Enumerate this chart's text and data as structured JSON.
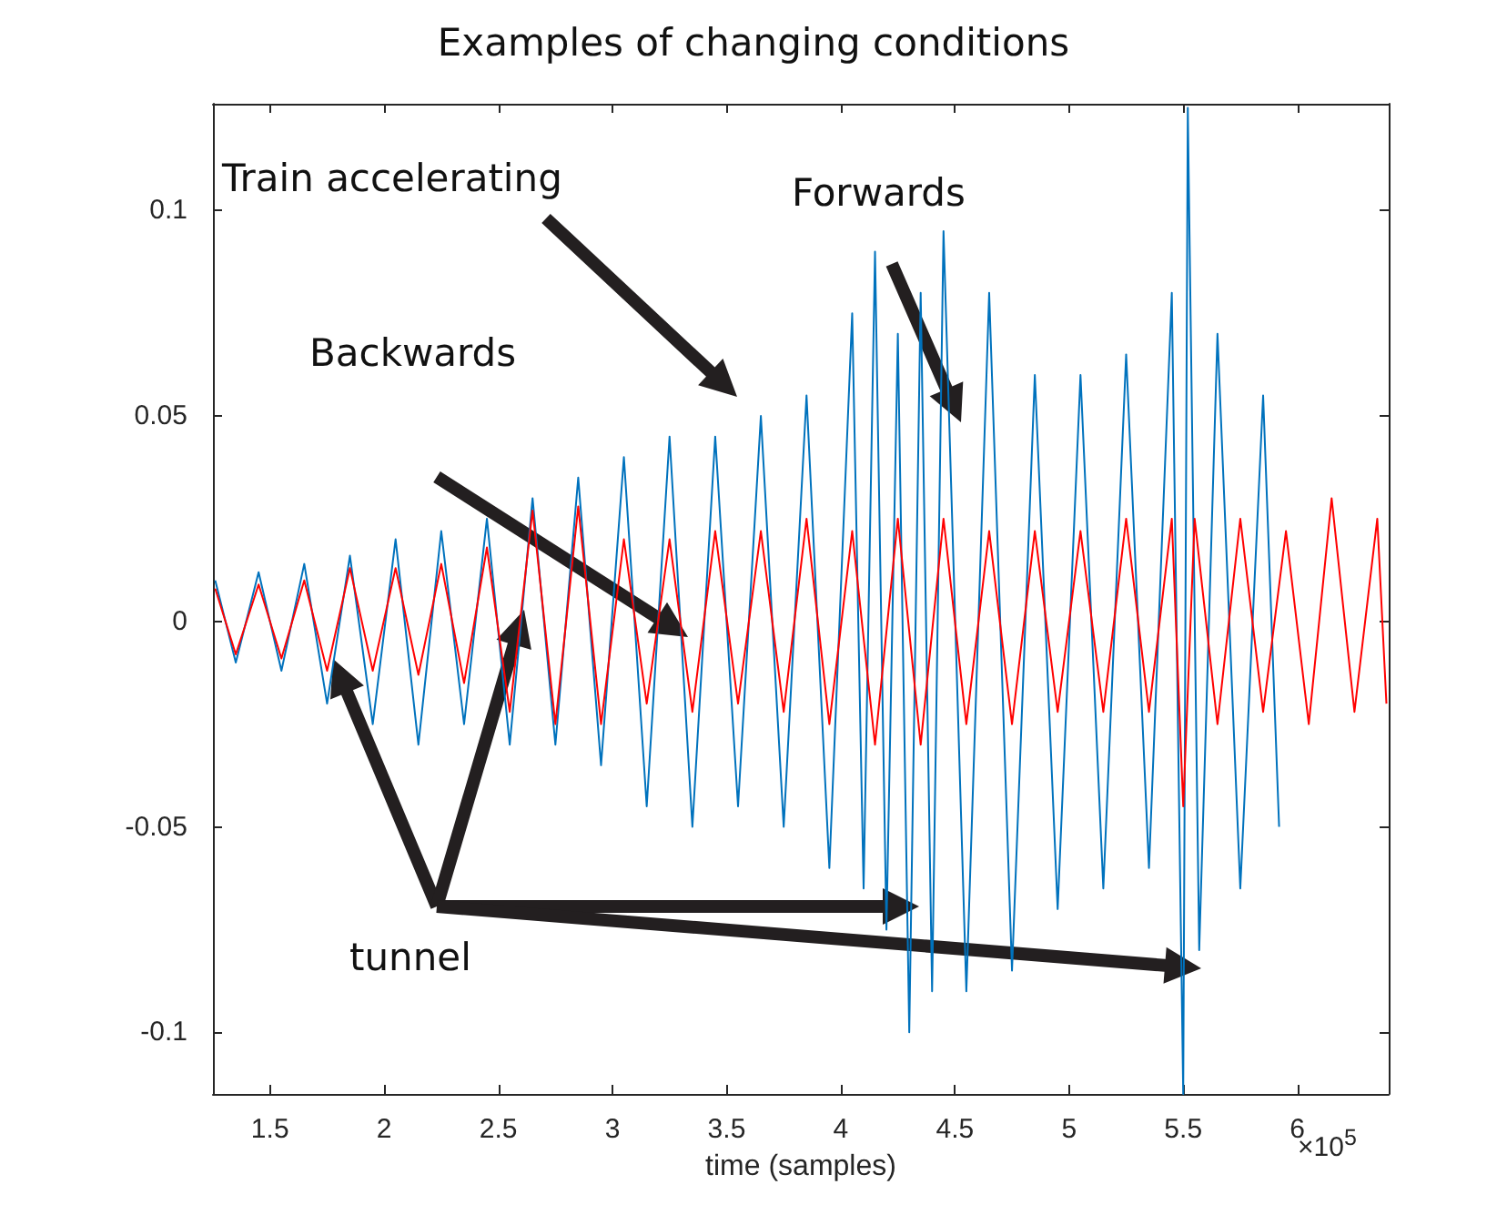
{
  "chart_data": {
    "type": "line",
    "title": "Examples of changing conditions",
    "xlabel": "time (samples)",
    "marker": "none",
    "xlim": [
      1.25,
      6.4
    ],
    "ylim": [
      -0.115,
      0.126
    ],
    "xticks": [
      1.5,
      2,
      2.5,
      3,
      3.5,
      4,
      4.5,
      5,
      5.5,
      6
    ],
    "yticks": [
      -0.1,
      -0.05,
      0,
      0.05,
      0.1
    ],
    "annotations": [
      "Train accelerating",
      "Forwards",
      "Backwards",
      "tunnel",
      "×10$^{5}$"
    ],
    "series": [
      {
        "color": "#0072bd",
        "x": [
          1.26,
          1.35,
          1.45,
          1.55,
          1.65,
          1.75,
          1.85,
          1.95,
          2.05,
          2.15,
          2.25,
          2.35,
          2.45,
          2.55,
          2.65,
          2.75,
          2.85,
          2.95,
          3.05,
          3.15,
          3.25,
          3.35,
          3.45,
          3.55,
          3.65,
          3.75,
          3.85,
          3.95,
          4.05,
          4.1,
          4.15,
          4.2,
          4.25,
          4.3,
          4.35,
          4.4,
          4.45,
          4.55,
          4.65,
          4.75,
          4.85,
          4.95,
          5.05,
          5.15,
          5.25,
          5.35,
          5.45,
          5.5,
          5.52,
          5.57,
          5.65,
          5.75,
          5.85,
          5.92
        ],
        "values": [
          0.01,
          -0.01,
          0.012,
          -0.012,
          0.014,
          -0.02,
          0.016,
          -0.025,
          0.02,
          -0.03,
          0.022,
          -0.025,
          0.025,
          -0.03,
          0.03,
          -0.03,
          0.035,
          -0.035,
          0.04,
          -0.045,
          0.045,
          -0.05,
          0.045,
          -0.045,
          0.05,
          -0.05,
          0.055,
          -0.06,
          0.075,
          -0.065,
          0.09,
          -0.075,
          0.07,
          -0.1,
          0.08,
          -0.09,
          0.095,
          -0.09,
          0.08,
          -0.085,
          0.06,
          -0.07,
          0.06,
          -0.065,
          0.065,
          -0.06,
          0.08,
          -0.115,
          0.125,
          -0.08,
          0.07,
          -0.065,
          0.055,
          -0.05
        ]
      },
      {
        "color": "#ff0000",
        "x": [
          1.26,
          1.35,
          1.45,
          1.55,
          1.65,
          1.75,
          1.85,
          1.95,
          2.05,
          2.15,
          2.25,
          2.35,
          2.45,
          2.55,
          2.65,
          2.75,
          2.85,
          2.95,
          3.05,
          3.15,
          3.25,
          3.35,
          3.45,
          3.55,
          3.65,
          3.75,
          3.85,
          3.95,
          4.05,
          4.15,
          4.25,
          4.35,
          4.45,
          4.55,
          4.65,
          4.75,
          4.85,
          4.95,
          5.05,
          5.15,
          5.25,
          5.35,
          5.45,
          5.5,
          5.55,
          5.65,
          5.75,
          5.85,
          5.95,
          6.05,
          6.15,
          6.25,
          6.35,
          6.39
        ],
        "values": [
          0.008,
          -0.008,
          0.009,
          -0.009,
          0.01,
          -0.012,
          0.013,
          -0.012,
          0.013,
          -0.013,
          0.014,
          -0.015,
          0.018,
          -0.022,
          0.027,
          -0.025,
          0.028,
          -0.025,
          0.02,
          -0.02,
          0.02,
          -0.022,
          0.022,
          -0.02,
          0.022,
          -0.022,
          0.025,
          -0.025,
          0.022,
          -0.03,
          0.025,
          -0.03,
          0.025,
          -0.025,
          0.022,
          -0.025,
          0.022,
          -0.022,
          0.022,
          -0.022,
          0.025,
          -0.022,
          0.025,
          -0.045,
          0.025,
          -0.025,
          0.025,
          -0.022,
          0.022,
          -0.025,
          0.03,
          -0.022,
          0.025,
          -0.02
        ]
      }
    ]
  }
}
